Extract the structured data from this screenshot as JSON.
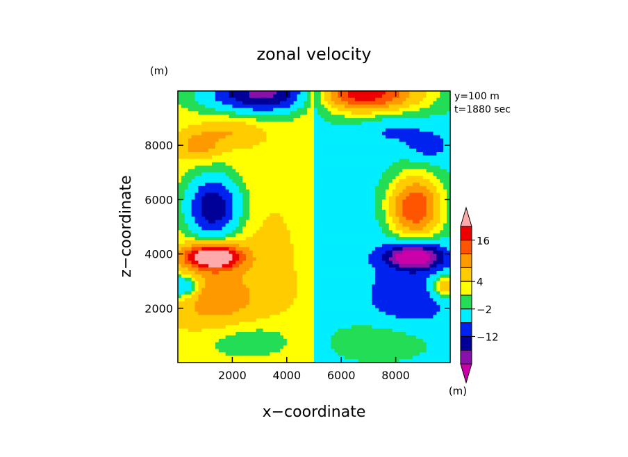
{
  "chart_data": {
    "type": "heatmap",
    "title": "zonal velocity",
    "xlabel": "x−coordinate",
    "ylabel": "z−coordinate",
    "x_unit": "(m)",
    "y_unit": "(m)",
    "annotations": [
      "y=100 m",
      "t=1880 sec"
    ],
    "xlim": [
      0,
      10000
    ],
    "ylim": [
      0,
      10000
    ],
    "x_ticks": [
      2000,
      4000,
      6000,
      8000
    ],
    "x_tick_labels": [
      "2000",
      "4000",
      "6000",
      "8000"
    ],
    "y_ticks": [
      2000,
      4000,
      6000,
      8000
    ],
    "y_tick_labels": [
      "2000",
      "4000",
      "6000",
      "8000"
    ],
    "colorbar": {
      "tick_labels": [
        {
          "label": "16",
          "value": 16
        },
        {
          "label": "4",
          "value": 4
        },
        {
          "label": "−2",
          "value": -2
        },
        {
          "label": "−12",
          "value": -12
        }
      ],
      "levels": [
        -22,
        -17,
        -12,
        -7,
        -2,
        1,
        4,
        8,
        12,
        16,
        20
      ],
      "colors": [
        "#cc00aa",
        "#8811aa",
        "#000099",
        "#0022ee",
        "#00eeff",
        "#22dd55",
        "#ffff00",
        "#ffcc00",
        "#ff9900",
        "#ff5500",
        "#ee0000",
        "#ffaaaa"
      ],
      "unit": "(m)"
    },
    "features": [
      {
        "x": 3700,
        "z": 9550,
        "value": -22
      },
      {
        "x": 7700,
        "z": 9550,
        "value": 22
      },
      {
        "x": 1400,
        "z": 5700,
        "value": -15
      },
      {
        "x": 8600,
        "z": 5700,
        "value": 15
      },
      {
        "x": 1400,
        "z": 3900,
        "value": 22
      },
      {
        "x": 8600,
        "z": 3900,
        "value": -22
      },
      {
        "x": 1500,
        "z": 2300,
        "value": 8
      },
      {
        "x": 8500,
        "z": 2300,
        "value": -8
      },
      {
        "x": 400,
        "z": 2800,
        "value": -8
      },
      {
        "x": 9600,
        "z": 2800,
        "value": 8
      },
      {
        "x": 1000,
        "z": 8200,
        "value": 7
      },
      {
        "x": 9000,
        "z": 8200,
        "value": -7
      }
    ]
  }
}
